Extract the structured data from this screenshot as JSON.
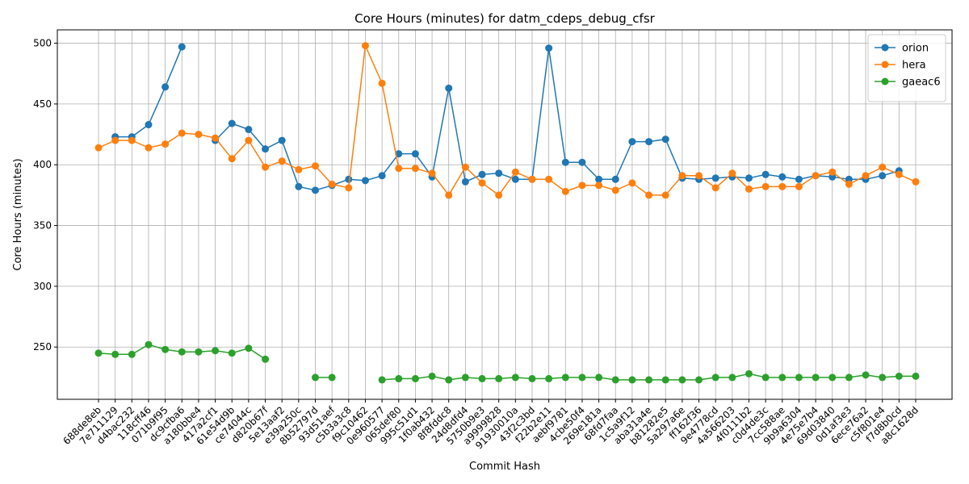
{
  "chart_data": {
    "type": "line",
    "title": "Core Hours (minutes) for datm_cdeps_debug_cfsr",
    "xlabel": "Commit Hash",
    "ylabel": "Core Hours (minutes)",
    "ylim": [
      207,
      511
    ],
    "yticks": [
      250,
      300,
      350,
      400,
      450,
      500
    ],
    "grid": true,
    "legend_position": "top-right",
    "categories": [
      "688de8eb",
      "7e711129",
      "d4bac232",
      "118cff46",
      "071b9f95",
      "dc9cfba6",
      "a180bbe4",
      "417a2cf1",
      "61e54d9b",
      "ce74044c",
      "d820b67f",
      "5e13aaf2",
      "e39a250c",
      "8b52797d",
      "93d51aef",
      "c5b3a3c8",
      "f9c10462",
      "0e960577",
      "065def80",
      "995c51d1",
      "1f0ab432",
      "8f8fddc8",
      "24d8dfd4",
      "5750b9e3",
      "a9999828",
      "91930010a",
      "43f2c3bd",
      "f22b2e11",
      "aebf9781",
      "4cbe50f4",
      "269e181a",
      "68fd7faa",
      "1c5a9f12",
      "aba31a4e",
      "b81282e5",
      "5a297a6e",
      "ff162f36",
      "9e4778cd",
      "4a566203",
      "4f0111b2",
      "c0d4de3c",
      "7cc588ae",
      "9b9a6304",
      "4e75e7b4",
      "69d03840",
      "0d1af3e3",
      "6ece76a2",
      "c5f801e4",
      "f7d8b0cd",
      "a8c1628d"
    ],
    "series": [
      {
        "name": "orion",
        "color": "#1f77b4",
        "values": [
          null,
          423,
          423,
          433,
          464,
          497,
          null,
          420,
          434,
          429,
          413,
          420,
          382,
          379,
          383,
          388,
          387,
          391,
          409,
          409,
          390,
          463,
          386,
          392,
          393,
          388,
          388,
          496,
          402,
          402,
          388,
          388,
          419,
          419,
          421,
          389,
          388,
          389,
          390,
          389,
          392,
          390,
          388,
          391,
          390,
          388,
          388,
          391,
          395,
          null
        ]
      },
      {
        "name": "hera",
        "color": "#ff7f0e",
        "values": [
          414,
          420,
          420,
          414,
          417,
          426,
          425,
          422,
          405,
          420,
          398,
          403,
          396,
          399,
          384,
          381,
          498,
          467,
          397,
          397,
          393,
          375,
          398,
          385,
          375,
          394,
          388,
          388,
          378,
          383,
          383,
          379,
          385,
          375,
          375,
          391,
          391,
          381,
          393,
          380,
          382,
          382,
          382,
          391,
          394,
          384,
          391,
          398,
          392,
          386
        ]
      },
      {
        "name": "gaeac6",
        "color": "#2ca02c",
        "values": [
          245,
          244,
          244,
          252,
          248,
          246,
          246,
          247,
          245,
          249,
          240,
          null,
          null,
          225,
          225,
          null,
          null,
          223,
          224,
          224,
          226,
          223,
          225,
          224,
          224,
          225,
          224,
          224,
          225,
          225,
          225,
          223,
          223,
          223,
          223,
          223,
          223,
          225,
          225,
          228,
          225,
          225,
          225,
          225,
          225,
          225,
          227,
          225,
          226,
          226
        ]
      }
    ]
  }
}
